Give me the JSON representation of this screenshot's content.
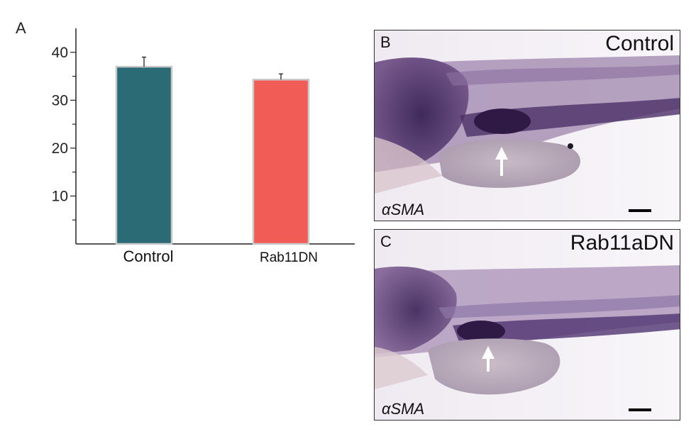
{
  "panel_a_letter": "A",
  "chart_data": {
    "type": "bar",
    "categories": [
      "Control",
      "Rab11DN"
    ],
    "values": [
      37,
      34.3
    ],
    "errors": [
      2,
      1.2
    ],
    "ylim": [
      0,
      45
    ],
    "yticks": [
      10,
      20,
      30,
      40
    ],
    "title": "",
    "xlabel": "",
    "ylabel": "",
    "colors": [
      "#2a6b76",
      "#f25c56"
    ]
  },
  "panel_b": {
    "letter": "B",
    "title": "Control",
    "stain": "αSMA"
  },
  "panel_c": {
    "letter": "C",
    "title": "Rab11aDN",
    "stain": "αSMA"
  }
}
